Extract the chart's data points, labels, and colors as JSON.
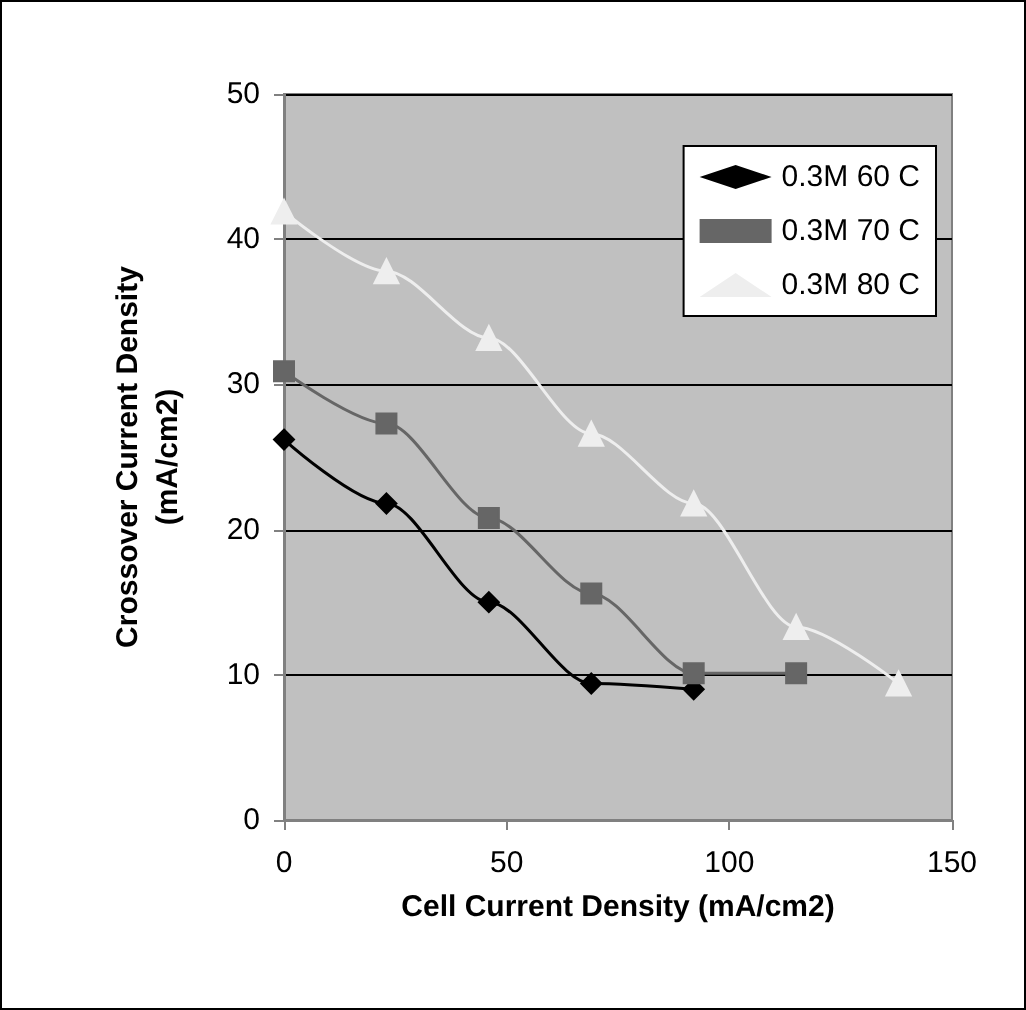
{
  "chart_data": {
    "type": "line",
    "xlabel": "Cell Current Density (mA/cm2)",
    "ylabel": "Crossover Current Density\n(mA/cm2)",
    "xlim": [
      0,
      150
    ],
    "xticks": [
      0,
      50,
      100,
      150
    ],
    "ylim": [
      0,
      50
    ],
    "yticks": [
      0,
      10,
      20,
      30,
      40,
      50
    ],
    "grid": "y",
    "legend": "top right",
    "series": [
      {
        "name": "0.3M 60 C",
        "color": "#000000",
        "marker": "diamond",
        "x": [
          0,
          23,
          46,
          69,
          92
        ],
        "values": [
          26.2,
          21.8,
          15.0,
          9.4,
          9.0
        ]
      },
      {
        "name": "0.3M 70 C",
        "color": "#666666",
        "marker": "square",
        "x": [
          0,
          23,
          46,
          69,
          92,
          115
        ],
        "values": [
          30.9,
          27.3,
          20.8,
          15.6,
          10.1,
          10.1
        ]
      },
      {
        "name": "0.3M 80 C",
        "color": "#eeeeee",
        "marker": "triangle",
        "x": [
          0,
          23,
          46,
          69,
          92,
          115,
          138
        ],
        "values": [
          41.9,
          37.8,
          33.2,
          26.6,
          21.8,
          13.3,
          9.4
        ]
      }
    ]
  }
}
